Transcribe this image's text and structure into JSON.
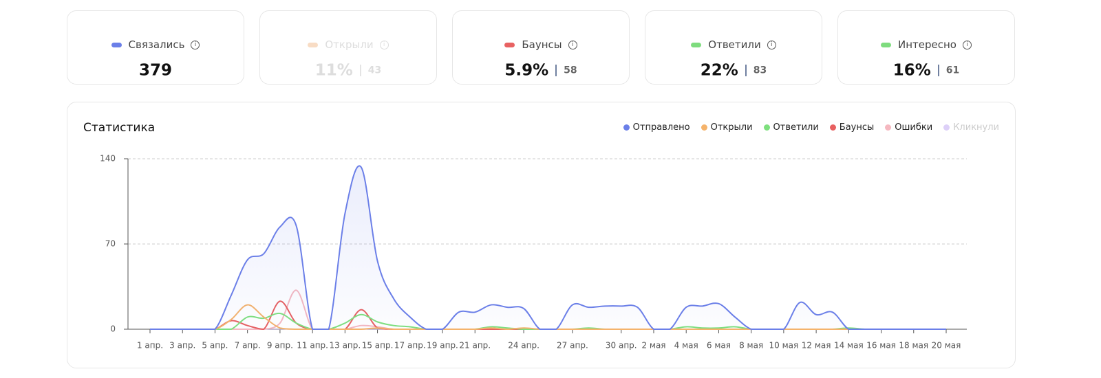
{
  "cards": [
    {
      "label": "Связались",
      "value": "379",
      "color": "#6b7fe8",
      "faded": false
    },
    {
      "label": "Открыли",
      "value": "11%",
      "count": "43",
      "color": "#f8dcc4",
      "faded": true
    },
    {
      "label": "Баунсы",
      "value": "5.9%",
      "count": "58",
      "color": "#e86262",
      "faded": false
    },
    {
      "label": "Ответили",
      "value": "22%",
      "count": "83",
      "color": "#7edc7e",
      "faded": false
    },
    {
      "label": "Интересно",
      "value": "16%",
      "count": "61",
      "color": "#7edc7e",
      "faded": false
    }
  ],
  "chart_data": {
    "type": "line",
    "title": "Статистика",
    "categories": [
      "1 апр.",
      null,
      "3 апр.",
      null,
      "5 апр.",
      null,
      "7 апр.",
      null,
      "9 апр.",
      null,
      "11 апр.",
      null,
      "13 апр.",
      null,
      "15 апр.",
      null,
      "17 апр.",
      null,
      "19 апр.",
      null,
      "21 апр.",
      null,
      null,
      "24 апр.",
      null,
      null,
      "27 апр.",
      null,
      null,
      "30 апр.",
      null,
      "2 мая",
      null,
      "4 мая",
      null,
      "6 мая",
      null,
      "8 мая",
      null,
      "10 мая",
      null,
      "12 мая",
      null,
      "14 мая",
      null,
      "16 мая",
      null,
      "18 мая",
      null,
      "20 мая"
    ],
    "series": [
      {
        "name": "Отправлено",
        "color": "#6b7fe8",
        "area": true,
        "active": true,
        "values": [
          0,
          0,
          0,
          0,
          0,
          28,
          57,
          62,
          84,
          85,
          0,
          0,
          95,
          133,
          56,
          25,
          10,
          0,
          0,
          14,
          14,
          20,
          18,
          17,
          0,
          0,
          20,
          18,
          19,
          19,
          18,
          0,
          0,
          18,
          19,
          21,
          10,
          0,
          0,
          0,
          22,
          12,
          14,
          0,
          0,
          0,
          0,
          0,
          0,
          0
        ]
      },
      {
        "name": "Открыли",
        "color": "#f5b36b",
        "area": false,
        "active": true,
        "values": [
          0,
          0,
          0,
          0,
          0,
          8,
          20,
          10,
          1,
          0,
          0,
          0,
          0,
          0,
          1,
          0,
          0,
          0,
          0,
          0,
          0,
          1,
          0,
          1,
          0,
          0,
          0,
          0,
          0,
          0,
          0,
          0,
          0,
          0,
          0,
          0,
          0,
          0,
          0,
          0,
          0,
          0,
          0,
          0,
          0,
          0,
          0,
          0,
          0,
          0
        ]
      },
      {
        "name": "Ответили",
        "color": "#7ee07e",
        "area": false,
        "active": true,
        "values": [
          0,
          0,
          0,
          0,
          0,
          0,
          10,
          9,
          13,
          5,
          0,
          0,
          5,
          12,
          6,
          3,
          2,
          0,
          0,
          0,
          0,
          2,
          1,
          0,
          0,
          0,
          0,
          1,
          0,
          0,
          0,
          0,
          0,
          2,
          1,
          1,
          2,
          0,
          0,
          0,
          0,
          0,
          0,
          1,
          0,
          0,
          0,
          0,
          0,
          0
        ]
      },
      {
        "name": "Баунсы",
        "color": "#e86060",
        "area": false,
        "active": true,
        "values": [
          0,
          0,
          0,
          0,
          0,
          7,
          3,
          0,
          23,
          5,
          0,
          0,
          0,
          16,
          1,
          0,
          0,
          0,
          0,
          0,
          0,
          0,
          0,
          0,
          0,
          0,
          0,
          0,
          0,
          0,
          0,
          0,
          0,
          0,
          0,
          0,
          0,
          0,
          0,
          0,
          0,
          0,
          0,
          0,
          0,
          0,
          0,
          0,
          0,
          0
        ]
      },
      {
        "name": "Ошибки",
        "color": "#f5b8c0",
        "area": false,
        "active": true,
        "values": [
          0,
          0,
          0,
          0,
          0,
          0,
          0,
          0,
          5,
          32,
          0,
          0,
          0,
          3,
          2,
          0,
          0,
          0,
          0,
          0,
          0,
          0,
          0,
          0,
          0,
          0,
          0,
          0,
          0,
          0,
          0,
          0,
          0,
          0,
          0,
          0,
          0,
          0,
          0,
          0,
          0,
          0,
          0,
          0,
          0,
          0,
          0,
          0,
          0,
          0
        ]
      },
      {
        "name": "Кликнули",
        "color": "#ddd0f8",
        "area": false,
        "active": false,
        "values": [
          0,
          0,
          0,
          0,
          0,
          0,
          0,
          0,
          0,
          0,
          0,
          0,
          0,
          0,
          0,
          0,
          0,
          0,
          0,
          0,
          0,
          0,
          0,
          0,
          0,
          0,
          0,
          0,
          0,
          0,
          0,
          0,
          0,
          0,
          0,
          0,
          0,
          0,
          0,
          0,
          0,
          0,
          0,
          0,
          0,
          0,
          0,
          0,
          0,
          0
        ]
      }
    ],
    "ylim": [
      0,
      140
    ],
    "yticks": [
      0,
      70,
      140
    ],
    "grid": true,
    "legend": "top-right"
  }
}
